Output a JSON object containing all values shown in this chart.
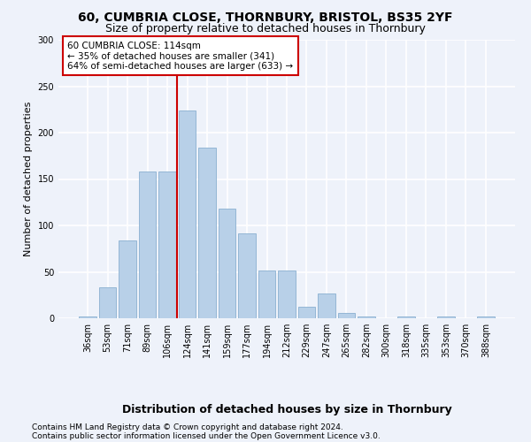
{
  "title1": "60, CUMBRIA CLOSE, THORNBURY, BRISTOL, BS35 2YF",
  "title2": "Size of property relative to detached houses in Thornbury",
  "xlabel": "Distribution of detached houses by size in Thornbury",
  "ylabel": "Number of detached properties",
  "categories": [
    "36sqm",
    "53sqm",
    "71sqm",
    "89sqm",
    "106sqm",
    "124sqm",
    "141sqm",
    "159sqm",
    "177sqm",
    "194sqm",
    "212sqm",
    "229sqm",
    "247sqm",
    "265sqm",
    "282sqm",
    "300sqm",
    "318sqm",
    "335sqm",
    "353sqm",
    "370sqm",
    "388sqm"
  ],
  "values": [
    2,
    33,
    84,
    158,
    158,
    224,
    184,
    118,
    91,
    51,
    51,
    12,
    27,
    6,
    2,
    0,
    2,
    0,
    2,
    0,
    2
  ],
  "bar_color": "#b8d0e8",
  "bar_edgecolor": "#8ab0d0",
  "vline_x_index": 4.5,
  "vline_color": "#cc0000",
  "annotation_line1": "60 CUMBRIA CLOSE: 114sqm",
  "annotation_line2": "← 35% of detached houses are smaller (341)",
  "annotation_line3": "64% of semi-detached houses are larger (633) →",
  "annotation_box_color": "white",
  "annotation_box_edgecolor": "#cc0000",
  "ylim": [
    0,
    300
  ],
  "yticks": [
    0,
    50,
    100,
    150,
    200,
    250,
    300
  ],
  "footer1": "Contains HM Land Registry data © Crown copyright and database right 2024.",
  "footer2": "Contains public sector information licensed under the Open Government Licence v3.0.",
  "background_color": "#eef2fa",
  "grid_color": "white",
  "title1_fontsize": 10,
  "title2_fontsize": 9,
  "xlabel_fontsize": 9,
  "ylabel_fontsize": 8,
  "tick_fontsize": 7,
  "annotation_fontsize": 7.5,
  "footer_fontsize": 6.5
}
